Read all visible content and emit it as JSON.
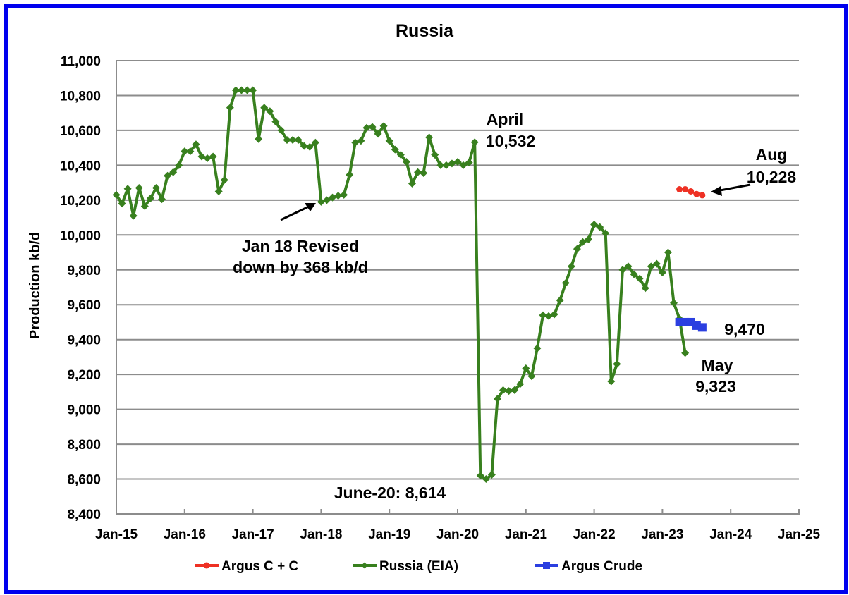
{
  "chart_data": {
    "type": "line",
    "title": "Russia",
    "xlabel": "",
    "ylabel": "Production kb/d",
    "ylim": [
      8400,
      11000
    ],
    "yticks": [
      8400,
      8600,
      8800,
      9000,
      9200,
      9400,
      9600,
      9800,
      10000,
      10200,
      10400,
      10600,
      10800,
      11000
    ],
    "ytick_labels": [
      "8,400",
      "8,600",
      "8,800",
      "9,000",
      "9,200",
      "9,400",
      "9,600",
      "9,800",
      "10,000",
      "10,200",
      "10,400",
      "10,600",
      "10,800",
      "11,000"
    ],
    "xlim": [
      "Jan-15",
      "Jan-25"
    ],
    "xtick_labels": [
      "Jan-15",
      "Jan-16",
      "Jan-17",
      "Jan-18",
      "Jan-19",
      "Jan-20",
      "Jan-21",
      "Jan-22",
      "Jan-23",
      "Jan-24",
      "Jan-25"
    ],
    "grid": true,
    "legend_position": "bottom",
    "series": [
      {
        "name": "Argus C + C",
        "color": "#ee3124",
        "marker": "circle",
        "start": "Apr-23",
        "values": [
          10262,
          10262,
          10250,
          10235,
          10228
        ]
      },
      {
        "name": "Russia (EIA)",
        "color": "#38801e",
        "marker": "diamond",
        "start": "Jan-15",
        "values": [
          10230,
          10180,
          10265,
          10110,
          10270,
          10165,
          10210,
          10270,
          10205,
          10340,
          10360,
          10400,
          10480,
          10480,
          10520,
          10450,
          10440,
          10450,
          10250,
          10315,
          10730,
          10830,
          10830,
          10830,
          10830,
          10550,
          10730,
          10710,
          10650,
          10600,
          10545,
          10545,
          10545,
          10510,
          10505,
          10530,
          10190,
          10200,
          10215,
          10225,
          10230,
          10345,
          10530,
          10540,
          10615,
          10620,
          10580,
          10625,
          10540,
          10490,
          10460,
          10420,
          10295,
          10360,
          10355,
          10560,
          10460,
          10400,
          10400,
          10410,
          10420,
          10400,
          10415,
          10532,
          8620,
          8600,
          8625,
          9060,
          9110,
          9105,
          9110,
          9145,
          9235,
          9190,
          9350,
          9540,
          9535,
          9545,
          9625,
          9725,
          9820,
          9920,
          9960,
          9975,
          10060,
          10045,
          10010,
          9160,
          9260,
          9800,
          9820,
          9775,
          9750,
          9695,
          9820,
          9835,
          9785,
          9900,
          9610,
          9520,
          9323
        ]
      },
      {
        "name": "Argus Crude",
        "color": "#2b3fe0",
        "marker": "square",
        "start": "Apr-23",
        "values": [
          9500,
          9500,
          9500,
          9480,
          9470
        ]
      }
    ],
    "annotations": [
      {
        "text": [
          "April",
          "10,532"
        ],
        "target": "Apr-20",
        "value": 10532
      },
      {
        "text": [
          "Jan 18 Revised",
          "down by 368 kb/d"
        ],
        "target": "Jan-18",
        "value": 10190,
        "arrow": true
      },
      {
        "text": [
          "June-20: 8,614"
        ],
        "target": "Jun-20",
        "value": 8614
      },
      {
        "text": [
          "Aug",
          "10,228"
        ],
        "target": "Aug-23",
        "value": 10228,
        "arrow": true
      },
      {
        "text": [
          "9,470"
        ],
        "target": "Aug-23",
        "value": 9470
      },
      {
        "text": [
          "May",
          "9,323"
        ],
        "target": "May-23",
        "value": 9323
      }
    ]
  },
  "labels": {
    "title": "Russia",
    "ylabel": "Production kb/d",
    "annot_april_1": "April",
    "annot_april_2": "10,532",
    "annot_jan18_1": "Jan 18 Revised",
    "annot_jan18_2": "down by 368 kb/d",
    "annot_june": "June-20: 8,614",
    "annot_aug_1": "Aug",
    "annot_aug_2": "10,228",
    "annot_crude": "9,470",
    "annot_may_1": "May",
    "annot_may_2": "9,323"
  }
}
